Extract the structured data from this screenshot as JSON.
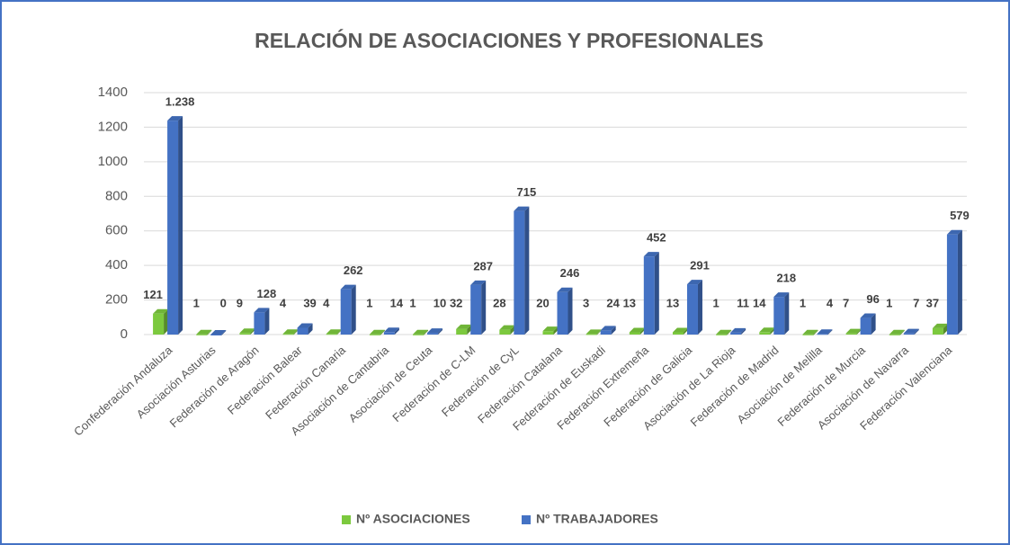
{
  "chart_data": {
    "type": "bar",
    "title": "RELACIÓN DE ASOCIACIONES Y PROFESIONALES",
    "categories": [
      "Confederación Andaluza",
      "Asociación Asturias",
      "Federación de Aragón",
      "Federación Balear",
      "Federación Canaria",
      "Asociación de Cantabria",
      "Asociación de Ceuta",
      "Federación de C-LM",
      "Federación de CyL",
      "Federación Catalana",
      "Federación de Euskadi",
      "Federación Extremeña",
      "Federación de Galicia",
      "Asociación de La Rioja",
      "Federación de Madrid",
      "Asociación de Melilla",
      "Federación de Murcia",
      "Asociación de Navarra",
      "Federación Valenciana"
    ],
    "series": [
      {
        "name": "Nº ASOCIACIONES",
        "color": "#7cc93e",
        "values": [
          121,
          1,
          9,
          4,
          4,
          1,
          1,
          32,
          28,
          20,
          3,
          13,
          13,
          1,
          14,
          1,
          7,
          1,
          37
        ]
      },
      {
        "name": "Nº TRABAJADORES",
        "color": "#4472c4",
        "values": [
          1238,
          0,
          128,
          39,
          262,
          14,
          10,
          287,
          715,
          246,
          24,
          452,
          291,
          11,
          218,
          4,
          96,
          7,
          579
        ],
        "value_labels": [
          "1.238",
          "0",
          "128",
          "39",
          "262",
          "14",
          "10",
          "287",
          "715",
          "246",
          "24",
          "452",
          "291",
          "11",
          "218",
          "4",
          "96",
          "7",
          "579"
        ]
      }
    ],
    "ylim": [
      0,
      1400
    ],
    "yticks": [
      0,
      200,
      400,
      600,
      800,
      1000,
      1200,
      1400
    ],
    "grid": true,
    "legend": "bottom"
  }
}
